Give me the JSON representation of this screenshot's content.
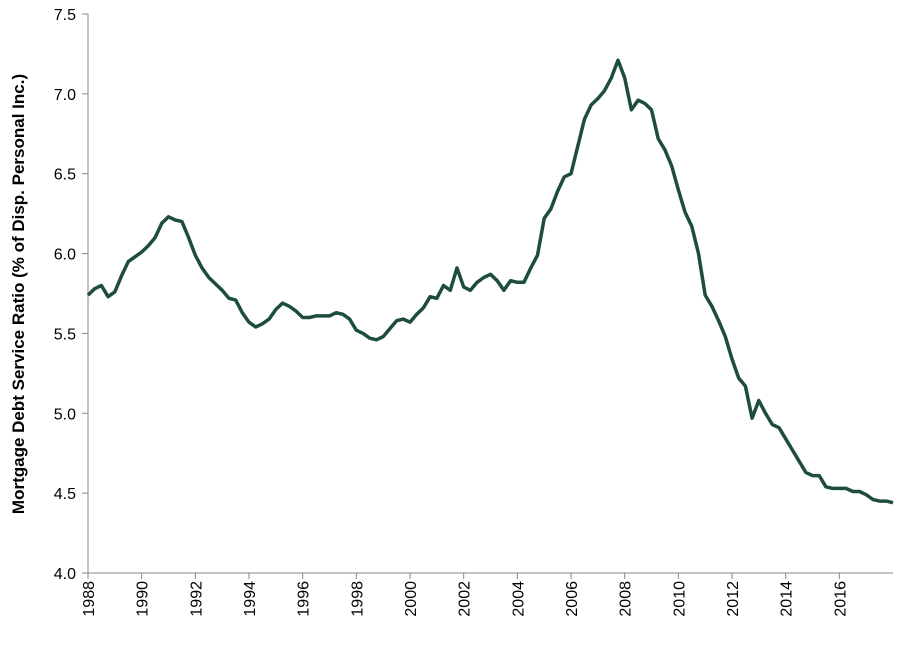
{
  "chart_data": {
    "type": "line",
    "y_label": "Mortgage Debt Service Ratio (% of Disp. Personal Inc.)",
    "x": [
      1988,
      1988.25,
      1988.5,
      1988.75,
      1989,
      1989.25,
      1989.5,
      1989.75,
      1990,
      1990.25,
      1990.5,
      1990.75,
      1991,
      1991.25,
      1991.5,
      1991.75,
      1992,
      1992.25,
      1992.5,
      1992.75,
      1993,
      1993.25,
      1993.5,
      1993.75,
      1994,
      1994.25,
      1994.5,
      1994.75,
      1995,
      1995.25,
      1995.5,
      1995.75,
      1996,
      1996.25,
      1996.5,
      1996.75,
      1997,
      1997.25,
      1997.5,
      1997.75,
      1998,
      1998.25,
      1998.5,
      1998.75,
      1999,
      1999.25,
      1999.5,
      1999.75,
      2000,
      2000.25,
      2000.5,
      2000.75,
      2001,
      2001.25,
      2001.5,
      2001.75,
      2002,
      2002.25,
      2002.5,
      2002.75,
      2003,
      2003.25,
      2003.5,
      2003.75,
      2004,
      2004.25,
      2004.5,
      2004.75,
      2005,
      2005.25,
      2005.5,
      2005.75,
      2006,
      2006.25,
      2006.5,
      2006.75,
      2007,
      2007.25,
      2007.5,
      2007.75,
      2008,
      2008.25,
      2008.5,
      2008.75,
      2009,
      2009.25,
      2009.5,
      2009.75,
      2010,
      2010.25,
      2010.5,
      2010.75,
      2011,
      2011.25,
      2011.5,
      2011.75,
      2012,
      2012.25,
      2012.5,
      2012.75,
      2013,
      2013.25,
      2013.5,
      2013.75,
      2014,
      2014.25,
      2014.5,
      2014.75,
      2015,
      2015.25,
      2015.5,
      2015.75,
      2016,
      2016.25,
      2016.5,
      2016.75,
      2017,
      2017.25,
      2017.5,
      2017.75,
      2018
    ],
    "series": [
      {
        "color": "#1d4d3e",
        "values": [
          5.74,
          5.78,
          5.8,
          5.73,
          5.76,
          5.86,
          5.95,
          5.98,
          6.01,
          6.05,
          6.1,
          6.19,
          6.23,
          6.21,
          6.2,
          6.1,
          5.99,
          5.91,
          5.85,
          5.81,
          5.77,
          5.72,
          5.71,
          5.63,
          5.57,
          5.54,
          5.56,
          5.59,
          5.65,
          5.69,
          5.67,
          5.64,
          5.6,
          5.6,
          5.61,
          5.61,
          5.61,
          5.63,
          5.62,
          5.59,
          5.52,
          5.5,
          5.47,
          5.46,
          5.48,
          5.53,
          5.58,
          5.59,
          5.57,
          5.62,
          5.66,
          5.73,
          5.72,
          5.8,
          5.77,
          5.91,
          5.79,
          5.77,
          5.82,
          5.85,
          5.87,
          5.83,
          5.77,
          5.83,
          5.82,
          5.82,
          5.91,
          5.99,
          6.22,
          6.28,
          6.39,
          6.48,
          6.5,
          6.67,
          6.84,
          6.93,
          6.97,
          7.02,
          7.1,
          7.21,
          7.1,
          6.9,
          6.96,
          6.94,
          6.9,
          6.72,
          6.65,
          6.55,
          6.4,
          6.26,
          6.17,
          6.0,
          5.74,
          5.67,
          5.58,
          5.48,
          5.34,
          5.22,
          5.17,
          4.97,
          5.08,
          5.0,
          4.93,
          4.91,
          4.84,
          4.77,
          4.7,
          4.63,
          4.61,
          4.61,
          4.54,
          4.53,
          4.53,
          4.53,
          4.51,
          4.51,
          4.49,
          4.46,
          4.45,
          4.45,
          4.44
        ]
      }
    ],
    "xlim": [
      1988,
      2018
    ],
    "xticks": [
      1988,
      1990,
      1992,
      1994,
      1996,
      1998,
      2000,
      2002,
      2004,
      2006,
      2008,
      2010,
      2012,
      2014,
      2016
    ],
    "ylim": [
      4.0,
      7.5
    ],
    "yticks": [
      {
        "value": 4.0,
        "label": "4.0"
      },
      4.5,
      {
        "value": 5.0,
        "label": "5.0"
      },
      5.5,
      {
        "value": 6.0,
        "label": "6.0"
      },
      6.5,
      {
        "value": 7.0,
        "label": "7.0"
      },
      7.5
    ],
    "grid": false
  }
}
